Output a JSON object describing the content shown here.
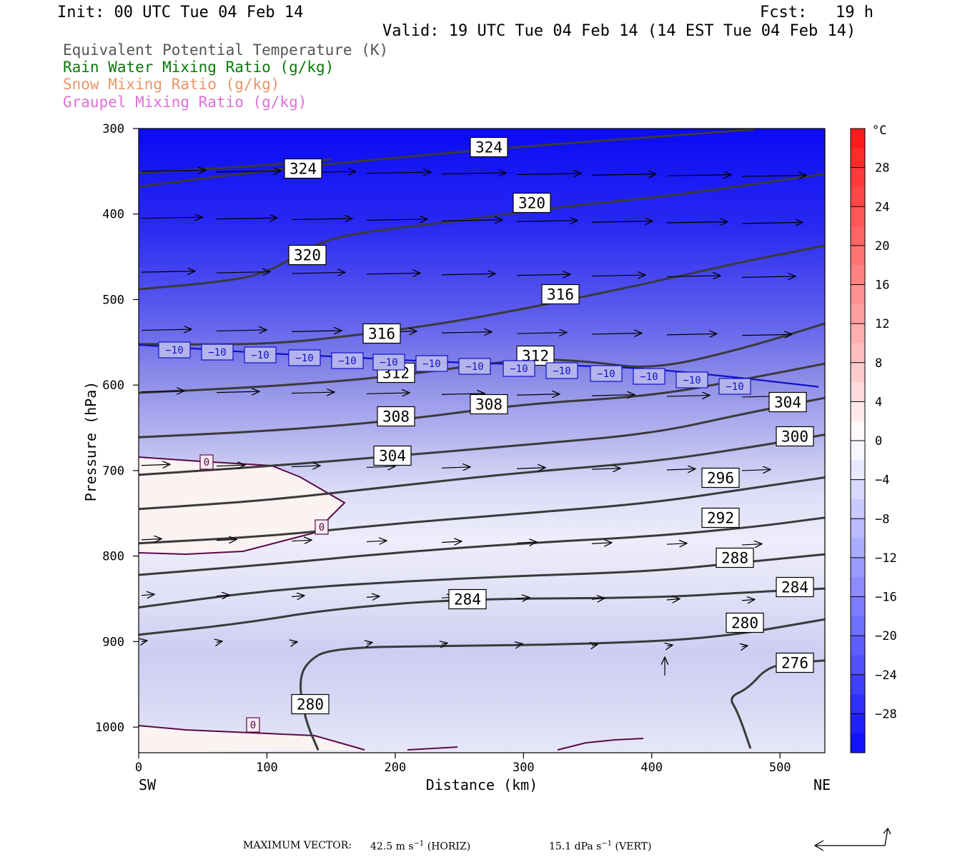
{
  "header": {
    "init": "Init: 00 UTC Tue 04 Feb 14",
    "fcst": "Fcst:   19 h",
    "valid": "Valid: 19 UTC Tue 04 Feb 14 (14 EST Tue 04 Feb 14)"
  },
  "legend": [
    {
      "text": "Equivalent Potential Temperature (K)",
      "color": "#555555"
    },
    {
      "text": "Rain Water Mixing Ratio (g/kg)",
      "color": "#0a7a0a"
    },
    {
      "text": "Snow Mixing Ratio (g/kg)",
      "color": "#e8956a"
    },
    {
      "text": "Graupel Mixing Ratio (g/kg)",
      "color": "#e070d8"
    }
  ],
  "chart_data": {
    "type": "contour",
    "xlabel": "Distance (km)",
    "ylabel": "Pressure (hPa)",
    "xlim": [
      0,
      535
    ],
    "ylim": [
      1030,
      300
    ],
    "x_ticks": [
      0,
      100,
      200,
      300,
      400,
      500
    ],
    "y_ticks": [
      300,
      400,
      500,
      600,
      700,
      800,
      900,
      1000
    ],
    "x_end_labels": {
      "left": "SW",
      "right": "NE"
    },
    "colorbar": {
      "unit": "°C",
      "ticks": [
        28,
        24,
        20,
        16,
        12,
        8,
        4,
        0,
        -4,
        -8,
        -12,
        -16,
        -20,
        -24,
        -28
      ],
      "tick_labels": [
        "28",
        "24",
        "20",
        "16",
        "12",
        "8",
        "4",
        "0",
        "−4",
        "−8",
        "−12",
        "−16",
        "−20",
        "−24",
        "−28"
      ],
      "range": [
        -32,
        32
      ],
      "levels_step": 2
    },
    "theta_e_contours": [
      {
        "label": "324",
        "points": [
          [
            0,
            368
          ],
          [
            100,
            349
          ],
          [
            200,
            334
          ],
          [
            300,
            321
          ],
          [
            400,
            310
          ],
          [
            480,
            301
          ]
        ]
      },
      {
        "label": "324",
        "points": [
          [
            0,
            352
          ],
          [
            90,
            344
          ],
          [
            150,
            336
          ]
        ]
      },
      {
        "label": "320",
        "points": [
          [
            0,
            488
          ],
          [
            60,
            480
          ],
          [
            100,
            470
          ],
          [
            140,
            432
          ],
          [
            180,
            420
          ],
          [
            250,
            408
          ],
          [
            320,
            393
          ],
          [
            420,
            378
          ],
          [
            535,
            353
          ]
        ]
      },
      {
        "label": "316",
        "points": [
          [
            0,
            552
          ],
          [
            100,
            553
          ],
          [
            180,
            540
          ],
          [
            250,
            525
          ],
          [
            320,
            505
          ],
          [
            400,
            480
          ],
          [
            470,
            456
          ],
          [
            535,
            437
          ]
        ]
      },
      {
        "label": "312",
        "points": [
          [
            0,
            609
          ],
          [
            100,
            602
          ],
          [
            200,
            590
          ],
          [
            300,
            569
          ],
          [
            350,
            572
          ],
          [
            400,
            582
          ],
          [
            470,
            558
          ],
          [
            535,
            528
          ]
        ]
      },
      {
        "label": "308",
        "points": [
          [
            0,
            661
          ],
          [
            100,
            654
          ],
          [
            200,
            642
          ],
          [
            300,
            622
          ],
          [
            400,
            613
          ],
          [
            480,
            591
          ],
          [
            535,
            575
          ]
        ]
      },
      {
        "label": "304",
        "points": [
          [
            0,
            705
          ],
          [
            100,
            695
          ],
          [
            200,
            683
          ],
          [
            300,
            670
          ],
          [
            400,
            657
          ],
          [
            470,
            634
          ],
          [
            535,
            615
          ]
        ]
      },
      {
        "label": "300",
        "points": [
          [
            0,
            745
          ],
          [
            100,
            735
          ],
          [
            200,
            718
          ],
          [
            300,
            702
          ],
          [
            400,
            690
          ],
          [
            480,
            672
          ],
          [
            535,
            658
          ]
        ]
      },
      {
        "label": "296",
        "points": [
          [
            0,
            785
          ],
          [
            100,
            777
          ],
          [
            200,
            762
          ],
          [
            300,
            750
          ],
          [
            400,
            738
          ],
          [
            480,
            720
          ],
          [
            535,
            708
          ]
        ]
      },
      {
        "label": "292",
        "points": [
          [
            0,
            822
          ],
          [
            100,
            810
          ],
          [
            200,
            796
          ],
          [
            300,
            785
          ],
          [
            400,
            777
          ],
          [
            480,
            766
          ],
          [
            535,
            755
          ]
        ]
      },
      {
        "label": "288",
        "points": [
          [
            0,
            860
          ],
          [
            100,
            840
          ],
          [
            200,
            830
          ],
          [
            300,
            823
          ],
          [
            400,
            818
          ],
          [
            480,
            806
          ],
          [
            535,
            798
          ]
        ]
      },
      {
        "label": "284",
        "points": [
          [
            0,
            892
          ],
          [
            80,
            879
          ],
          [
            150,
            862
          ],
          [
            250,
            850
          ],
          [
            400,
            849
          ],
          [
            480,
            842
          ],
          [
            535,
            838
          ]
        ]
      },
      {
        "label": "280",
        "points": [
          [
            140,
            1027
          ],
          [
            130,
            992
          ],
          [
            125,
            950
          ],
          [
            130,
            925
          ],
          [
            150,
            907
          ],
          [
            250,
            905
          ],
          [
            350,
            903
          ],
          [
            450,
            896
          ],
          [
            535,
            874
          ]
        ]
      },
      {
        "label": "276",
        "points": [
          [
            477,
            1025
          ],
          [
            467,
            982
          ],
          [
            460,
            965
          ],
          [
            475,
            955
          ],
          [
            490,
            930
          ],
          [
            510,
            925
          ],
          [
            535,
            922
          ]
        ]
      }
    ],
    "freezing_contour_label": "0",
    "isotherm_-10_label": "−10",
    "isotherm_-10_points": [
      [
        0,
        553
      ],
      [
        40,
        557
      ],
      [
        100,
        563
      ],
      [
        160,
        567
      ],
      [
        220,
        572
      ],
      [
        280,
        575
      ],
      [
        340,
        577
      ],
      [
        400,
        581
      ],
      [
        460,
        590
      ],
      [
        530,
        602
      ]
    ],
    "max_vector": {
      "label": "MAXIMUM VECTOR:",
      "horizontal": "42.5 m s",
      "horizontal_unit_tail": " (HORIZ)",
      "vertical": "15.1 dPa s",
      "vertical_unit_tail": " (VERT)",
      "exponent": "−1"
    }
  },
  "label_colors": {
    "isotherm": "#1010c8",
    "theta_e": "#3a3a3a",
    "freezing": "#5a0a4a"
  }
}
